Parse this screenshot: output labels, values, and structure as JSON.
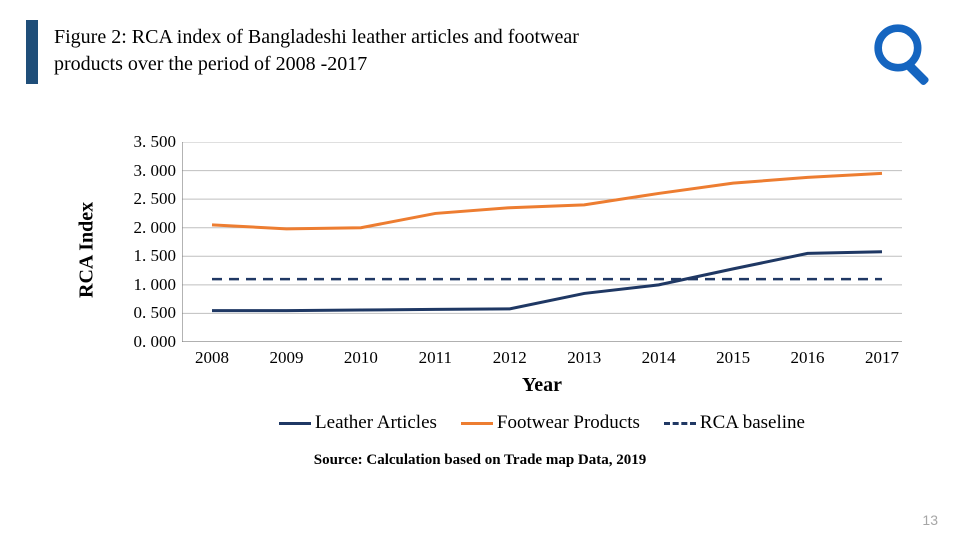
{
  "title_line1": "Figure 2: RCA index of Bangladeshi leather articles and footwear",
  "title_line2": "products over the period of 2008 -2017",
  "title_border_color": "#1f4e79",
  "magnifier_color": "#1565c0",
  "page_number": "13",
  "source_note": "Source: Calculation based on Trade map Data, 2019",
  "chart": {
    "type": "line",
    "background_color": "#ffffff",
    "grid_color": "#bfbfbf",
    "axis_color": "#808080",
    "y_label": "RCA Index",
    "x_label": "Year",
    "label_fontsize": 20,
    "tick_fontsize": 17,
    "ylim": [
      0,
      3.5
    ],
    "ytick_step": 0.5,
    "y_ticks": [
      "3. 500",
      "3. 000",
      "2. 500",
      "2. 000",
      "1. 500",
      "1. 000",
      "0. 500",
      "0. 000"
    ],
    "x_categories": [
      "2008",
      "2009",
      "2010",
      "2011",
      "2012",
      "2013",
      "2014",
      "2015",
      "2016",
      "2017"
    ],
    "series": [
      {
        "name": "Leather Articles",
        "color": "#1f3864",
        "line_width": 3,
        "values": [
          0.55,
          0.55,
          0.56,
          0.57,
          0.58,
          0.85,
          1.0,
          1.28,
          1.55,
          1.58
        ]
      },
      {
        "name": "Footwear Products",
        "color": "#ed7d31",
        "line_width": 3,
        "values": [
          2.05,
          1.98,
          2.0,
          2.25,
          2.35,
          2.4,
          2.6,
          2.78,
          2.88,
          2.95
        ]
      }
    ],
    "baseline": {
      "name": "RCA baseline",
      "color": "#203864",
      "style": "dashed",
      "value": 1.1
    },
    "legend": {
      "position": "bottom",
      "items": [
        "Leather Articles",
        "Footwear Products",
        "RCA baseline"
      ]
    }
  }
}
